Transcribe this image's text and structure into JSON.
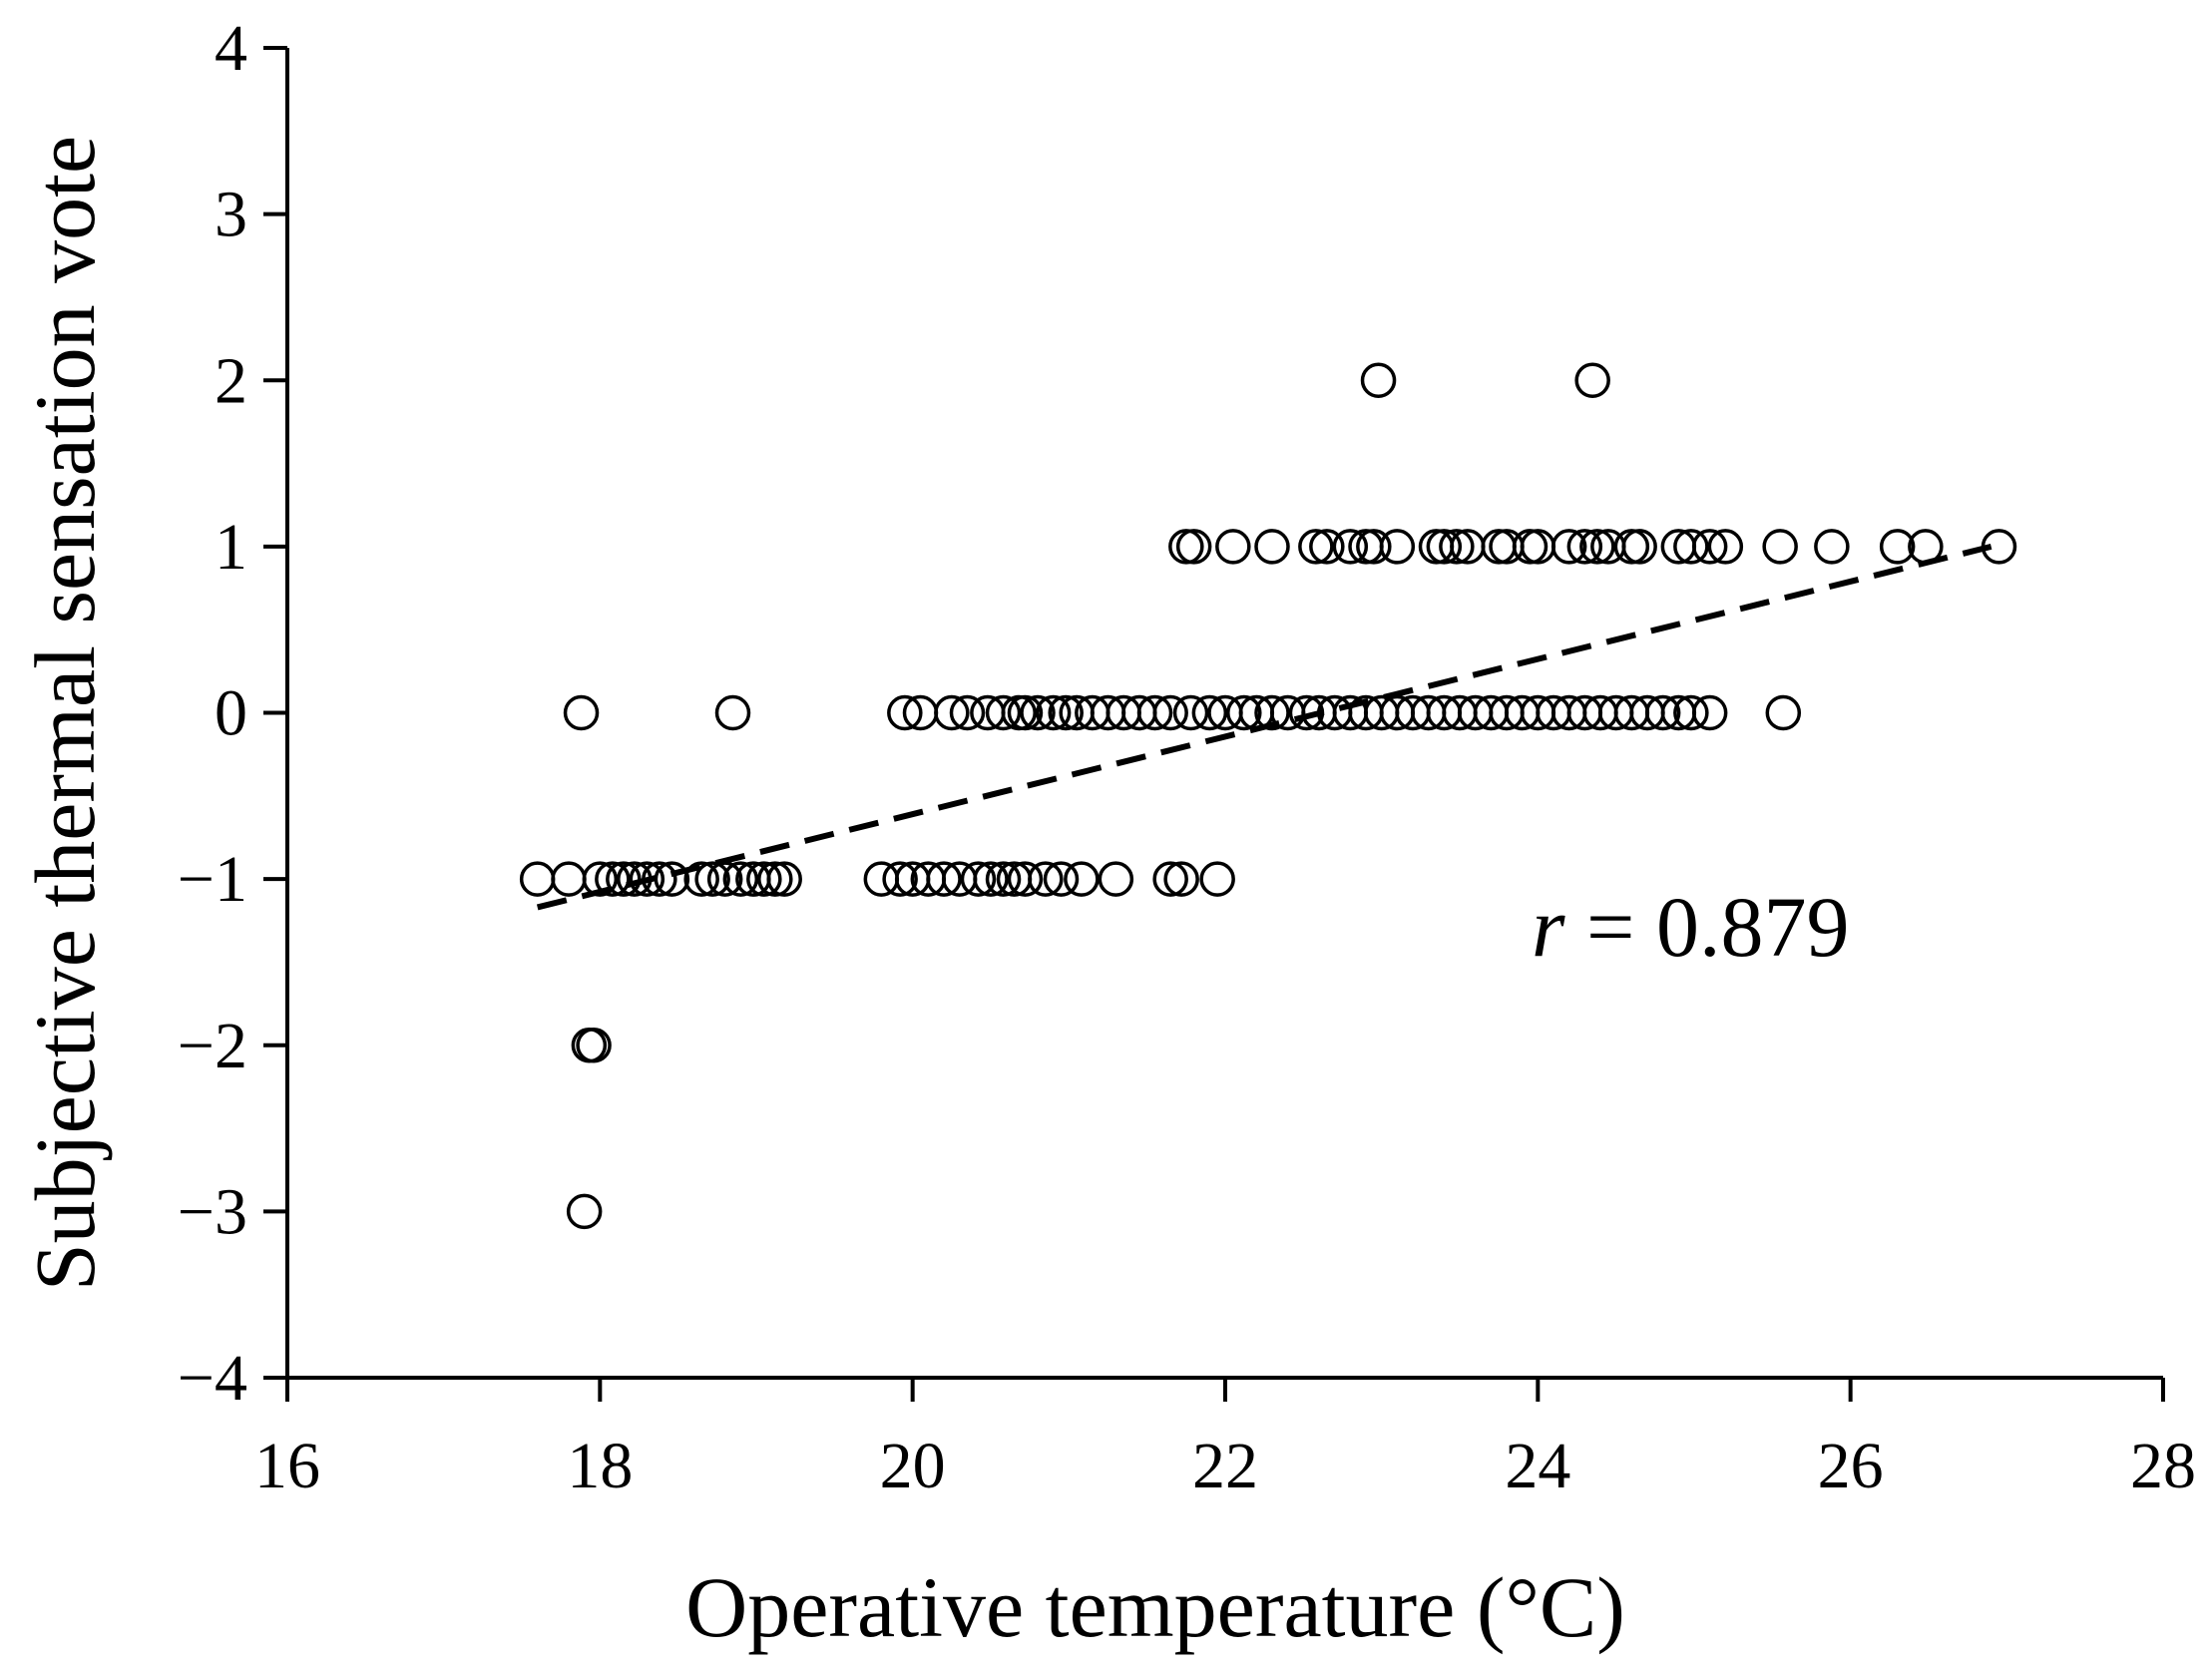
{
  "chart_data": {
    "type": "scatter",
    "title": "",
    "xlabel": "Operative temperature (°C)",
    "ylabel": "Subjective thermal sensation vote",
    "xlim": [
      16,
      28
    ],
    "ylim": [
      -4,
      4
    ],
    "xticks": [
      16,
      18,
      20,
      22,
      24,
      26,
      28
    ],
    "yticks": [
      -4,
      -3,
      -2,
      -1,
      0,
      1,
      2,
      3,
      4
    ],
    "xtick_labels": [
      "16",
      "18",
      "20",
      "22",
      "24",
      "26",
      "28"
    ],
    "ytick_labels": [
      "−4",
      "−3",
      "−2",
      "−1",
      "0",
      "1",
      "2",
      "3",
      "4"
    ],
    "grid": false,
    "legend": "none",
    "marker": "open-circle",
    "annotation": {
      "symbol": "r",
      "text": " = 0.879"
    },
    "trendline": {
      "style": "dashed",
      "x": [
        17.6,
        26.9
      ],
      "y": [
        -1.17,
        1.0
      ]
    },
    "colors": {
      "marker": "#000000",
      "axis": "#000000",
      "trendline": "#000000"
    },
    "points": [
      [
        22.98,
        2
      ],
      [
        24.35,
        2
      ],
      [
        21.75,
        1
      ],
      [
        21.8,
        1
      ],
      [
        22.05,
        1
      ],
      [
        22.3,
        1
      ],
      [
        22.58,
        1
      ],
      [
        22.65,
        1
      ],
      [
        22.8,
        1
      ],
      [
        22.9,
        1
      ],
      [
        22.95,
        1
      ],
      [
        23.1,
        1
      ],
      [
        23.35,
        1
      ],
      [
        23.4,
        1
      ],
      [
        23.48,
        1
      ],
      [
        23.55,
        1
      ],
      [
        23.75,
        1
      ],
      [
        23.8,
        1
      ],
      [
        23.95,
        1
      ],
      [
        24.0,
        1
      ],
      [
        24.2,
        1
      ],
      [
        24.3,
        1
      ],
      [
        24.38,
        1
      ],
      [
        24.45,
        1
      ],
      [
        24.6,
        1
      ],
      [
        24.65,
        1
      ],
      [
        24.9,
        1
      ],
      [
        24.98,
        1
      ],
      [
        25.1,
        1
      ],
      [
        25.2,
        1
      ],
      [
        25.55,
        1
      ],
      [
        25.88,
        1
      ],
      [
        26.3,
        1
      ],
      [
        26.48,
        1
      ],
      [
        26.95,
        1
      ],
      [
        17.88,
        0
      ],
      [
        18.85,
        0
      ],
      [
        19.95,
        0
      ],
      [
        20.05,
        0
      ],
      [
        20.25,
        0
      ],
      [
        20.35,
        0
      ],
      [
        20.48,
        0
      ],
      [
        20.58,
        0
      ],
      [
        20.68,
        0
      ],
      [
        20.72,
        0
      ],
      [
        20.8,
        0
      ],
      [
        20.9,
        0
      ],
      [
        20.98,
        0
      ],
      [
        21.05,
        0
      ],
      [
        21.15,
        0
      ],
      [
        21.25,
        0
      ],
      [
        21.35,
        0
      ],
      [
        21.45,
        0
      ],
      [
        21.55,
        0
      ],
      [
        21.65,
        0
      ],
      [
        21.78,
        0
      ],
      [
        21.9,
        0
      ],
      [
        22.0,
        0
      ],
      [
        22.12,
        0
      ],
      [
        22.2,
        0
      ],
      [
        22.3,
        0
      ],
      [
        22.4,
        0
      ],
      [
        22.52,
        0
      ],
      [
        22.6,
        0
      ],
      [
        22.7,
        0
      ],
      [
        22.8,
        0
      ],
      [
        22.9,
        0
      ],
      [
        23.0,
        0
      ],
      [
        23.1,
        0
      ],
      [
        23.2,
        0
      ],
      [
        23.3,
        0
      ],
      [
        23.4,
        0
      ],
      [
        23.5,
        0
      ],
      [
        23.6,
        0
      ],
      [
        23.7,
        0
      ],
      [
        23.8,
        0
      ],
      [
        23.9,
        0
      ],
      [
        24.0,
        0
      ],
      [
        24.1,
        0
      ],
      [
        24.2,
        0
      ],
      [
        24.3,
        0
      ],
      [
        24.4,
        0
      ],
      [
        24.5,
        0
      ],
      [
        24.6,
        0
      ],
      [
        24.7,
        0
      ],
      [
        24.8,
        0
      ],
      [
        24.9,
        0
      ],
      [
        24.98,
        0
      ],
      [
        25.1,
        0
      ],
      [
        25.57,
        0
      ],
      [
        17.6,
        -1
      ],
      [
        17.8,
        -1
      ],
      [
        18.0,
        -1
      ],
      [
        18.08,
        -1
      ],
      [
        18.15,
        -1
      ],
      [
        18.22,
        -1
      ],
      [
        18.3,
        -1
      ],
      [
        18.38,
        -1
      ],
      [
        18.46,
        -1
      ],
      [
        18.65,
        -1
      ],
      [
        18.72,
        -1
      ],
      [
        18.8,
        -1
      ],
      [
        18.9,
        -1
      ],
      [
        18.98,
        -1
      ],
      [
        19.05,
        -1
      ],
      [
        19.12,
        -1
      ],
      [
        19.18,
        -1
      ],
      [
        19.8,
        -1
      ],
      [
        19.92,
        -1
      ],
      [
        20.0,
        -1
      ],
      [
        20.1,
        -1
      ],
      [
        20.2,
        -1
      ],
      [
        20.3,
        -1
      ],
      [
        20.42,
        -1
      ],
      [
        20.5,
        -1
      ],
      [
        20.58,
        -1
      ],
      [
        20.65,
        -1
      ],
      [
        20.72,
        -1
      ],
      [
        20.85,
        -1
      ],
      [
        20.95,
        -1
      ],
      [
        21.08,
        -1
      ],
      [
        21.3,
        -1
      ],
      [
        21.65,
        -1
      ],
      [
        21.72,
        -1
      ],
      [
        21.95,
        -1
      ],
      [
        17.93,
        -2
      ],
      [
        17.96,
        -2
      ],
      [
        17.9,
        -3
      ]
    ]
  }
}
